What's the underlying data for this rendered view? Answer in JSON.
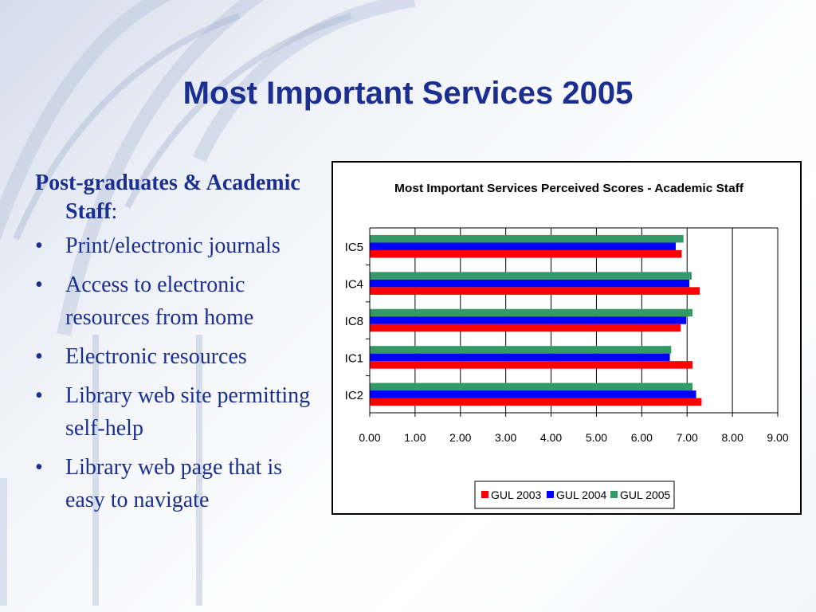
{
  "slide": {
    "title": "Most Important Services 2005",
    "intro_bold": "Post-graduates & Academic Staff",
    "intro_suffix": ":",
    "bullets": [
      "Print/electronic journals",
      "Access to electronic resources from home",
      "Electronic resources",
      "Library web site permitting self-help",
      "Library web page that is easy to navigate"
    ]
  },
  "chart_data": {
    "type": "bar",
    "orientation": "horizontal",
    "title": "Most Important Services Perceived Scores - Academic Staff",
    "categories": [
      "IC5",
      "IC4",
      "IC8",
      "IC1",
      "IC2"
    ],
    "series": [
      {
        "name": "GUL 2003",
        "color": "#ff0000",
        "values": [
          6.88,
          7.28,
          6.86,
          7.12,
          7.32
        ]
      },
      {
        "name": "GUL 2004",
        "color": "#0000ff",
        "values": [
          6.75,
          7.05,
          6.98,
          6.62,
          7.2
        ]
      },
      {
        "name": "GUL 2005",
        "color": "#339966",
        "values": [
          6.92,
          7.1,
          7.12,
          6.65,
          7.12
        ]
      }
    ],
    "xlim": [
      0,
      9
    ],
    "xticks": [
      "0.00",
      "1.00",
      "2.00",
      "3.00",
      "4.00",
      "5.00",
      "6.00",
      "7.00",
      "8.00",
      "9.00"
    ],
    "xlabel": "",
    "ylabel": "",
    "grid": "vertical major",
    "legend": "bottom"
  }
}
